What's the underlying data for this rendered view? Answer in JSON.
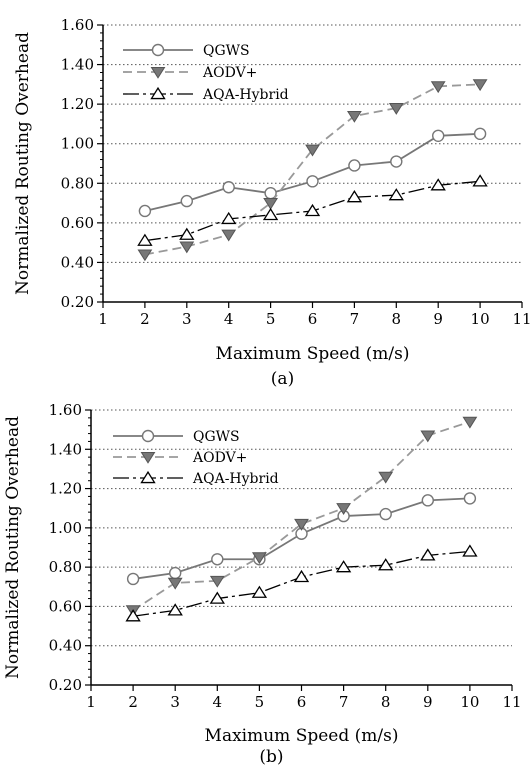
{
  "chart_data": [
    {
      "type": "line",
      "caption": "(a)",
      "xlabel": "Maximum Speed (m/s)",
      "ylabel": "Normalized Routing Overhead",
      "xlim": [
        1,
        11
      ],
      "ylim": [
        0.2,
        1.6
      ],
      "x_ticks": [
        1,
        2,
        3,
        4,
        5,
        6,
        7,
        8,
        9,
        10,
        11
      ],
      "x_tick_labels": [
        "1",
        "2",
        "3",
        "4",
        "5",
        "6",
        "7",
        "8",
        "9",
        "10",
        "11"
      ],
      "y_ticks": [
        0.2,
        0.4,
        0.6,
        0.8,
        1.0,
        1.2,
        1.4,
        1.6
      ],
      "y_tick_labels": [
        "0.20",
        "0.40",
        "0.60",
        "0.80",
        "1.00",
        "1.20",
        "1.40",
        "1.60"
      ],
      "grid": "horizontal dotted",
      "legend_position": "top-left",
      "x": [
        2,
        3,
        4,
        5,
        6,
        7,
        8,
        9,
        10
      ],
      "series": [
        {
          "name": "QGWS",
          "values": [
            0.66,
            0.71,
            0.78,
            0.75,
            0.81,
            0.89,
            0.91,
            1.04,
            1.05
          ],
          "color": "#777777",
          "marker": "circle",
          "dash": "solid"
        },
        {
          "name": "AODV+",
          "values": [
            0.44,
            0.48,
            0.54,
            0.7,
            0.97,
            1.14,
            1.18,
            1.29,
            1.3
          ],
          "color": "#999999",
          "marker": "triangle-down",
          "dash": "dashed"
        },
        {
          "name": "AQA-Hybrid",
          "values": [
            0.51,
            0.54,
            0.62,
            0.64,
            0.66,
            0.73,
            0.74,
            0.79,
            0.81
          ],
          "color": "#000000",
          "marker": "triangle-up",
          "dash": "dash-dot"
        }
      ]
    },
    {
      "type": "line",
      "caption": "(b)",
      "xlabel": "Maximum Speed (m/s)",
      "ylabel": "Normalized Routing Overhead",
      "xlim": [
        1,
        11
      ],
      "ylim": [
        0.2,
        1.6
      ],
      "x_ticks": [
        1,
        2,
        3,
        4,
        5,
        6,
        7,
        8,
        9,
        10,
        11
      ],
      "x_tick_labels": [
        "1",
        "2",
        "3",
        "4",
        "5",
        "6",
        "7",
        "8",
        "9",
        "10",
        "11"
      ],
      "y_ticks": [
        0.2,
        0.4,
        0.6,
        0.8,
        1.0,
        1.2,
        1.4,
        1.6
      ],
      "y_tick_labels": [
        "0.20",
        "0.40",
        "0.60",
        "0.80",
        "1.00",
        "1.20",
        "1.40",
        "1.60"
      ],
      "grid": "horizontal dotted",
      "legend_position": "top-left",
      "x": [
        2,
        3,
        4,
        5,
        6,
        7,
        8,
        9,
        10
      ],
      "series": [
        {
          "name": "QGWS",
          "values": [
            0.74,
            0.77,
            0.84,
            0.84,
            0.97,
            1.06,
            1.07,
            1.14,
            1.15
          ],
          "color": "#777777",
          "marker": "circle",
          "dash": "solid"
        },
        {
          "name": "AODV+",
          "values": [
            0.58,
            0.72,
            0.73,
            0.85,
            1.02,
            1.1,
            1.26,
            1.47,
            1.54
          ],
          "color": "#999999",
          "marker": "triangle-down",
          "dash": "dashed"
        },
        {
          "name": "AQA-Hybrid",
          "values": [
            0.55,
            0.58,
            0.64,
            0.67,
            0.75,
            0.8,
            0.81,
            0.86,
            0.88
          ],
          "color": "#000000",
          "marker": "triangle-up",
          "dash": "dash-dot"
        }
      ]
    }
  ]
}
